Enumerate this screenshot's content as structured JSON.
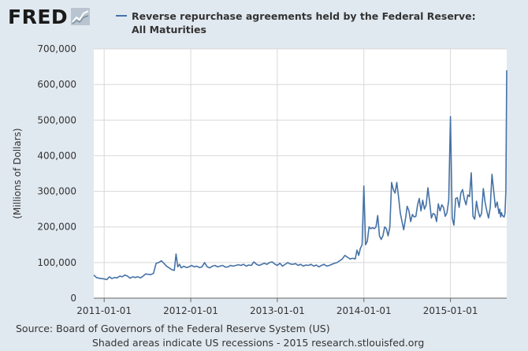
{
  "brand": {
    "logo_text": "FRED"
  },
  "chart_data": {
    "type": "line",
    "title": "Reverse repurchase agreements held by the Federal Reserve:",
    "subtitle": "All Maturities",
    "ylabel": "(Millions of Dollars)",
    "xlabel": "",
    "ylim": [
      0,
      700000
    ],
    "yticks": [
      0,
      100000,
      200000,
      300000,
      400000,
      500000,
      600000,
      700000
    ],
    "ytick_labels": [
      "0",
      "100,000",
      "200,000",
      "300,000",
      "400,000",
      "500,000",
      "600,000",
      "700,000"
    ],
    "xlim": [
      2010.88,
      2015.65
    ],
    "xticks": [
      2011.0,
      2012.0,
      2013.0,
      2014.0,
      2015.0
    ],
    "xtick_labels": [
      "2011-01-01",
      "2012-01-01",
      "2013-01-01",
      "2014-01-01",
      "2015-01-01"
    ],
    "grid": true,
    "legend": "top-left",
    "series": [
      {
        "name": "Reverse repurchase agreements held by the Federal Reserve: All Maturities",
        "color": "#4572a7",
        "points": [
          [
            2010.88,
            65000
          ],
          [
            2010.91,
            58000
          ],
          [
            2010.94,
            56000
          ],
          [
            2010.97,
            55000
          ],
          [
            2011.0,
            54000
          ],
          [
            2011.03,
            52000
          ],
          [
            2011.06,
            60000
          ],
          [
            2011.09,
            55000
          ],
          [
            2011.12,
            58000
          ],
          [
            2011.15,
            57000
          ],
          [
            2011.18,
            62000
          ],
          [
            2011.21,
            60000
          ],
          [
            2011.24,
            65000
          ],
          [
            2011.27,
            62000
          ],
          [
            2011.3,
            56000
          ],
          [
            2011.33,
            60000
          ],
          [
            2011.36,
            58000
          ],
          [
            2011.39,
            60000
          ],
          [
            2011.42,
            57000
          ],
          [
            2011.45,
            62000
          ],
          [
            2011.48,
            68000
          ],
          [
            2011.51,
            67000
          ],
          [
            2011.54,
            66000
          ],
          [
            2011.57,
            70000
          ],
          [
            2011.6,
            98000
          ],
          [
            2011.63,
            100000
          ],
          [
            2011.66,
            105000
          ],
          [
            2011.69,
            98000
          ],
          [
            2011.72,
            90000
          ],
          [
            2011.75,
            85000
          ],
          [
            2011.78,
            80000
          ],
          [
            2011.81,
            78000
          ],
          [
            2011.83,
            124000
          ],
          [
            2011.85,
            88000
          ],
          [
            2011.87,
            95000
          ],
          [
            2011.89,
            85000
          ],
          [
            2011.92,
            90000
          ],
          [
            2011.95,
            86000
          ],
          [
            2011.98,
            88000
          ],
          [
            2012.01,
            92000
          ],
          [
            2012.04,
            88000
          ],
          [
            2012.07,
            90000
          ],
          [
            2012.1,
            86000
          ],
          [
            2012.13,
            88000
          ],
          [
            2012.16,
            100000
          ],
          [
            2012.19,
            88000
          ],
          [
            2012.22,
            85000
          ],
          [
            2012.25,
            90000
          ],
          [
            2012.28,
            92000
          ],
          [
            2012.31,
            88000
          ],
          [
            2012.34,
            90000
          ],
          [
            2012.37,
            92000
          ],
          [
            2012.4,
            87000
          ],
          [
            2012.43,
            88000
          ],
          [
            2012.46,
            92000
          ],
          [
            2012.49,
            90000
          ],
          [
            2012.52,
            92000
          ],
          [
            2012.55,
            94000
          ],
          [
            2012.58,
            92000
          ],
          [
            2012.61,
            95000
          ],
          [
            2012.64,
            90000
          ],
          [
            2012.67,
            93000
          ],
          [
            2012.7,
            92000
          ],
          [
            2012.73,
            102000
          ],
          [
            2012.76,
            95000
          ],
          [
            2012.79,
            92000
          ],
          [
            2012.82,
            95000
          ],
          [
            2012.85,
            98000
          ],
          [
            2012.88,
            95000
          ],
          [
            2012.91,
            100000
          ],
          [
            2012.94,
            102000
          ],
          [
            2012.97,
            96000
          ],
          [
            2013.0,
            92000
          ],
          [
            2013.03,
            98000
          ],
          [
            2013.06,
            90000
          ],
          [
            2013.09,
            95000
          ],
          [
            2013.12,
            100000
          ],
          [
            2013.15,
            96000
          ],
          [
            2013.18,
            95000
          ],
          [
            2013.21,
            97000
          ],
          [
            2013.24,
            92000
          ],
          [
            2013.27,
            95000
          ],
          [
            2013.3,
            90000
          ],
          [
            2013.33,
            93000
          ],
          [
            2013.36,
            92000
          ],
          [
            2013.39,
            95000
          ],
          [
            2013.42,
            90000
          ],
          [
            2013.45,
            93000
          ],
          [
            2013.48,
            88000
          ],
          [
            2013.51,
            92000
          ],
          [
            2013.54,
            95000
          ],
          [
            2013.57,
            90000
          ],
          [
            2013.6,
            92000
          ],
          [
            2013.63,
            95000
          ],
          [
            2013.66,
            98000
          ],
          [
            2013.69,
            100000
          ],
          [
            2013.72,
            105000
          ],
          [
            2013.75,
            110000
          ],
          [
            2013.78,
            120000
          ],
          [
            2013.81,
            115000
          ],
          [
            2013.84,
            110000
          ],
          [
            2013.87,
            112000
          ],
          [
            2013.9,
            110000
          ],
          [
            2013.92,
            135000
          ],
          [
            2013.94,
            120000
          ],
          [
            2013.96,
            140000
          ],
          [
            2013.98,
            150000
          ],
          [
            2014.0,
            315000
          ],
          [
            2014.02,
            150000
          ],
          [
            2014.04,
            160000
          ],
          [
            2014.06,
            200000
          ],
          [
            2014.08,
            195000
          ],
          [
            2014.1,
            198000
          ],
          [
            2014.12,
            195000
          ],
          [
            2014.14,
            200000
          ],
          [
            2014.16,
            232000
          ],
          [
            2014.18,
            175000
          ],
          [
            2014.2,
            165000
          ],
          [
            2014.22,
            175000
          ],
          [
            2014.24,
            200000
          ],
          [
            2014.26,
            195000
          ],
          [
            2014.28,
            175000
          ],
          [
            2014.3,
            200000
          ],
          [
            2014.32,
            325000
          ],
          [
            2014.34,
            305000
          ],
          [
            2014.36,
            295000
          ],
          [
            2014.38,
            325000
          ],
          [
            2014.4,
            285000
          ],
          [
            2014.42,
            240000
          ],
          [
            2014.44,
            215000
          ],
          [
            2014.46,
            192000
          ],
          [
            2014.48,
            222000
          ],
          [
            2014.5,
            258000
          ],
          [
            2014.52,
            245000
          ],
          [
            2014.54,
            215000
          ],
          [
            2014.56,
            235000
          ],
          [
            2014.58,
            228000
          ],
          [
            2014.6,
            230000
          ],
          [
            2014.62,
            262000
          ],
          [
            2014.64,
            280000
          ],
          [
            2014.66,
            245000
          ],
          [
            2014.68,
            275000
          ],
          [
            2014.7,
            250000
          ],
          [
            2014.72,
            262000
          ],
          [
            2014.74,
            310000
          ],
          [
            2014.76,
            270000
          ],
          [
            2014.78,
            225000
          ],
          [
            2014.8,
            238000
          ],
          [
            2014.82,
            235000
          ],
          [
            2014.84,
            215000
          ],
          [
            2014.86,
            265000
          ],
          [
            2014.88,
            245000
          ],
          [
            2014.9,
            262000
          ],
          [
            2014.92,
            255000
          ],
          [
            2014.94,
            230000
          ],
          [
            2014.96,
            240000
          ],
          [
            2014.98,
            275000
          ],
          [
            2015.0,
            510000
          ],
          [
            2015.02,
            225000
          ],
          [
            2015.04,
            205000
          ],
          [
            2015.06,
            280000
          ],
          [
            2015.08,
            282000
          ],
          [
            2015.1,
            255000
          ],
          [
            2015.12,
            295000
          ],
          [
            2015.14,
            305000
          ],
          [
            2015.16,
            278000
          ],
          [
            2015.18,
            262000
          ],
          [
            2015.2,
            290000
          ],
          [
            2015.22,
            285000
          ],
          [
            2015.24,
            352000
          ],
          [
            2015.26,
            230000
          ],
          [
            2015.28,
            222000
          ],
          [
            2015.3,
            272000
          ],
          [
            2015.32,
            245000
          ],
          [
            2015.34,
            228000
          ],
          [
            2015.36,
            238000
          ],
          [
            2015.38,
            308000
          ],
          [
            2015.4,
            270000
          ],
          [
            2015.42,
            245000
          ],
          [
            2015.44,
            225000
          ],
          [
            2015.46,
            255000
          ],
          [
            2015.48,
            348000
          ],
          [
            2015.5,
            300000
          ],
          [
            2015.52,
            255000
          ],
          [
            2015.54,
            270000
          ],
          [
            2015.56,
            238000
          ],
          [
            2015.57,
            250000
          ],
          [
            2015.58,
            228000
          ],
          [
            2015.59,
            240000
          ],
          [
            2015.6,
            232000
          ],
          [
            2015.61,
            230000
          ],
          [
            2015.62,
            228000
          ],
          [
            2015.63,
            238000
          ],
          [
            2015.64,
            300000
          ],
          [
            2015.65,
            640000
          ]
        ]
      }
    ],
    "source_note": "Source: Board of Governors of the Federal Reserve System (US)",
    "recession_note": "Shaded areas indicate US recessions - 2015 research.stlouisfed.org"
  }
}
